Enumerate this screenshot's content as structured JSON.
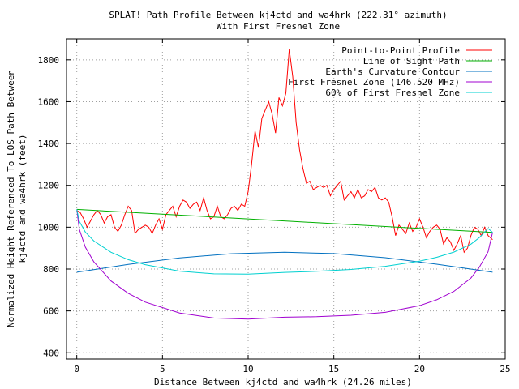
{
  "chart_data": {
    "type": "line",
    "title": "SPLAT! Path Profile Between kj4ctd and wa4hrk (222.31° azimuth)",
    "subtitle": "With First Fresnel Zone",
    "xlabel": "Distance Between kj4ctd and wa4hrk (24.26 miles)",
    "ylabel_line1": "Normalized Height Referenced To LOS Path Between",
    "ylabel_line2": "kj4ctd and wa4hrk (feet)",
    "xlim": [
      -0.6,
      25
    ],
    "ylim": [
      370,
      1900
    ],
    "x_ticks": [
      0,
      5,
      10,
      15,
      20,
      25
    ],
    "y_ticks": [
      400,
      600,
      800,
      1000,
      1200,
      1400,
      1600,
      1800
    ],
    "grid": true,
    "legend_position": "top-right",
    "path_length": 24.26,
    "series": [
      {
        "name": "Point-to-Point Profile",
        "color": "#ff0000",
        "x": [
          0,
          0.2,
          0.4,
          0.6,
          0.8,
          1.0,
          1.2,
          1.4,
          1.6,
          1.8,
          2.0,
          2.2,
          2.4,
          2.6,
          2.8,
          3.0,
          3.2,
          3.4,
          3.6,
          3.8,
          4.0,
          4.2,
          4.4,
          4.6,
          4.8,
          5.0,
          5.2,
          5.4,
          5.6,
          5.8,
          6.0,
          6.2,
          6.4,
          6.6,
          6.8,
          7.0,
          7.2,
          7.4,
          7.6,
          7.8,
          8.0,
          8.2,
          8.4,
          8.6,
          8.8,
          9.0,
          9.2,
          9.4,
          9.6,
          9.8,
          10.0,
          10.2,
          10.4,
          10.6,
          10.8,
          11.0,
          11.2,
          11.4,
          11.6,
          11.8,
          12.0,
          12.2,
          12.4,
          12.6,
          12.8,
          13.0,
          13.2,
          13.4,
          13.6,
          13.8,
          14.0,
          14.2,
          14.4,
          14.6,
          14.8,
          15.0,
          15.2,
          15.4,
          15.6,
          15.8,
          16.0,
          16.2,
          16.4,
          16.6,
          16.8,
          17.0,
          17.2,
          17.4,
          17.6,
          17.8,
          18.0,
          18.2,
          18.4,
          18.6,
          18.8,
          19.0,
          19.2,
          19.4,
          19.6,
          19.8,
          20.0,
          20.2,
          20.4,
          20.6,
          20.8,
          21.0,
          21.2,
          21.4,
          21.6,
          21.8,
          22.0,
          22.2,
          22.4,
          22.6,
          22.8,
          23.0,
          23.2,
          23.4,
          23.6,
          23.8,
          24.0,
          24.26
        ],
        "values": [
          1080,
          1070,
          1040,
          1000,
          1030,
          1060,
          1080,
          1060,
          1020,
          1050,
          1060,
          1000,
          980,
          1010,
          1060,
          1100,
          1080,
          970,
          990,
          1000,
          1010,
          1000,
          970,
          1010,
          1040,
          990,
          1060,
          1080,
          1100,
          1050,
          1100,
          1130,
          1120,
          1090,
          1110,
          1120,
          1080,
          1140,
          1080,
          1040,
          1050,
          1100,
          1050,
          1040,
          1060,
          1090,
          1100,
          1080,
          1110,
          1100,
          1170,
          1300,
          1460,
          1380,
          1520,
          1560,
          1600,
          1540,
          1450,
          1620,
          1580,
          1640,
          1850,
          1720,
          1500,
          1370,
          1280,
          1210,
          1220,
          1180,
          1190,
          1200,
          1190,
          1200,
          1150,
          1180,
          1200,
          1220,
          1130,
          1150,
          1170,
          1140,
          1180,
          1140,
          1150,
          1180,
          1170,
          1190,
          1140,
          1130,
          1140,
          1120,
          1050,
          960,
          1010,
          990,
          970,
          1020,
          980,
          1000,
          1040,
          1000,
          950,
          980,
          1000,
          1010,
          990,
          920,
          950,
          930,
          890,
          920,
          960,
          880,
          900,
          960,
          1000,
          990,
          960,
          1000,
          960,
          940
        ]
      },
      {
        "name": "Line of Sight Path",
        "color": "#00b000",
        "x": [
          0,
          24.26
        ],
        "values": [
          1085,
          975
        ]
      },
      {
        "name": "Earth's Curvature Contour",
        "color": "#0070c0",
        "x": [
          0,
          3,
          6,
          9,
          12.13,
          15,
          18,
          21,
          24.26
        ],
        "values": [
          785,
          822,
          853,
          873,
          880,
          874,
          854,
          823,
          785
        ]
      },
      {
        "name": "First Fresnel Zone (146.520 MHz)",
        "color": "#a000d0",
        "x": [
          0,
          0.15,
          0.5,
          1,
          2,
          3,
          4,
          6,
          8,
          10,
          12.13,
          14,
          16,
          18,
          20,
          21,
          22,
          23,
          23.5,
          24,
          24.26
        ],
        "values": [
          1085,
          990,
          905,
          834,
          743,
          684,
          642,
          590,
          566,
          561,
          570,
          572,
          579,
          593,
          625,
          653,
          693,
          757,
          810,
          883,
          975
        ]
      },
      {
        "name": "60% of First Fresnel Zone",
        "color": "#00d0d0",
        "x": [
          0,
          0.15,
          0.5,
          1,
          2,
          3,
          4,
          6,
          8,
          10,
          12.13,
          14,
          16,
          18,
          20,
          21,
          22,
          23,
          23.5,
          24,
          24.26
        ],
        "values": [
          1085,
          1028,
          977,
          934,
          880,
          845,
          821,
          790,
          777,
          776,
          784,
          789,
          798,
          813,
          838,
          856,
          881,
          919,
          951,
          994,
          975
        ]
      }
    ]
  }
}
